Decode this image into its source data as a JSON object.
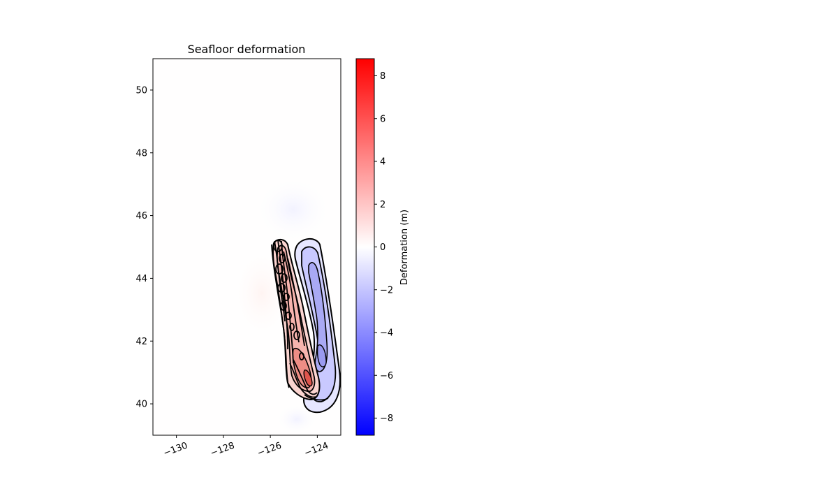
{
  "chart_data": {
    "type": "heatmap",
    "title": "Seafloor deformation",
    "xlabel": "",
    "ylabel": "",
    "xlim": [
      -131.0,
      -123.0
    ],
    "ylim": [
      39.0,
      51.0
    ],
    "x_ticks": [
      -130,
      -128,
      -126,
      -124
    ],
    "x_tick_labels": [
      "−130",
      "−128",
      "−126",
      "−124"
    ],
    "y_ticks": [
      40,
      42,
      44,
      46,
      48,
      50
    ],
    "y_tick_labels": [
      "40",
      "42",
      "44",
      "46",
      "48",
      "50"
    ],
    "colorbar": {
      "label": "Deformation (m)",
      "range": [
        -8.8,
        8.8
      ],
      "ticks": [
        -8,
        -6,
        -4,
        -2,
        0,
        2,
        4,
        6,
        8
      ],
      "tick_labels": [
        "−8",
        "−6",
        "−4",
        "−2",
        "0",
        "2",
        "4",
        "6",
        "8"
      ],
      "colormap": "bwr",
      "color_low": "#0000ff",
      "color_mid": "#ffffff",
      "color_high": "#ff0000"
    },
    "features": {
      "uplift_zone": {
        "description_lon_range": [
          -125.5,
          -123.7
        ],
        "lat_range": [
          40.3,
          45.2
        ],
        "peak_value": 6.5,
        "peak_location": [
          -124.0,
          40.7
        ]
      },
      "subsidence_zone": {
        "lon_range": [
          -124.3,
          -123.1
        ],
        "lat_range": [
          39.8,
          45.2
        ],
        "min_value": -3.0
      }
    },
    "contours": true,
    "grid": false
  }
}
